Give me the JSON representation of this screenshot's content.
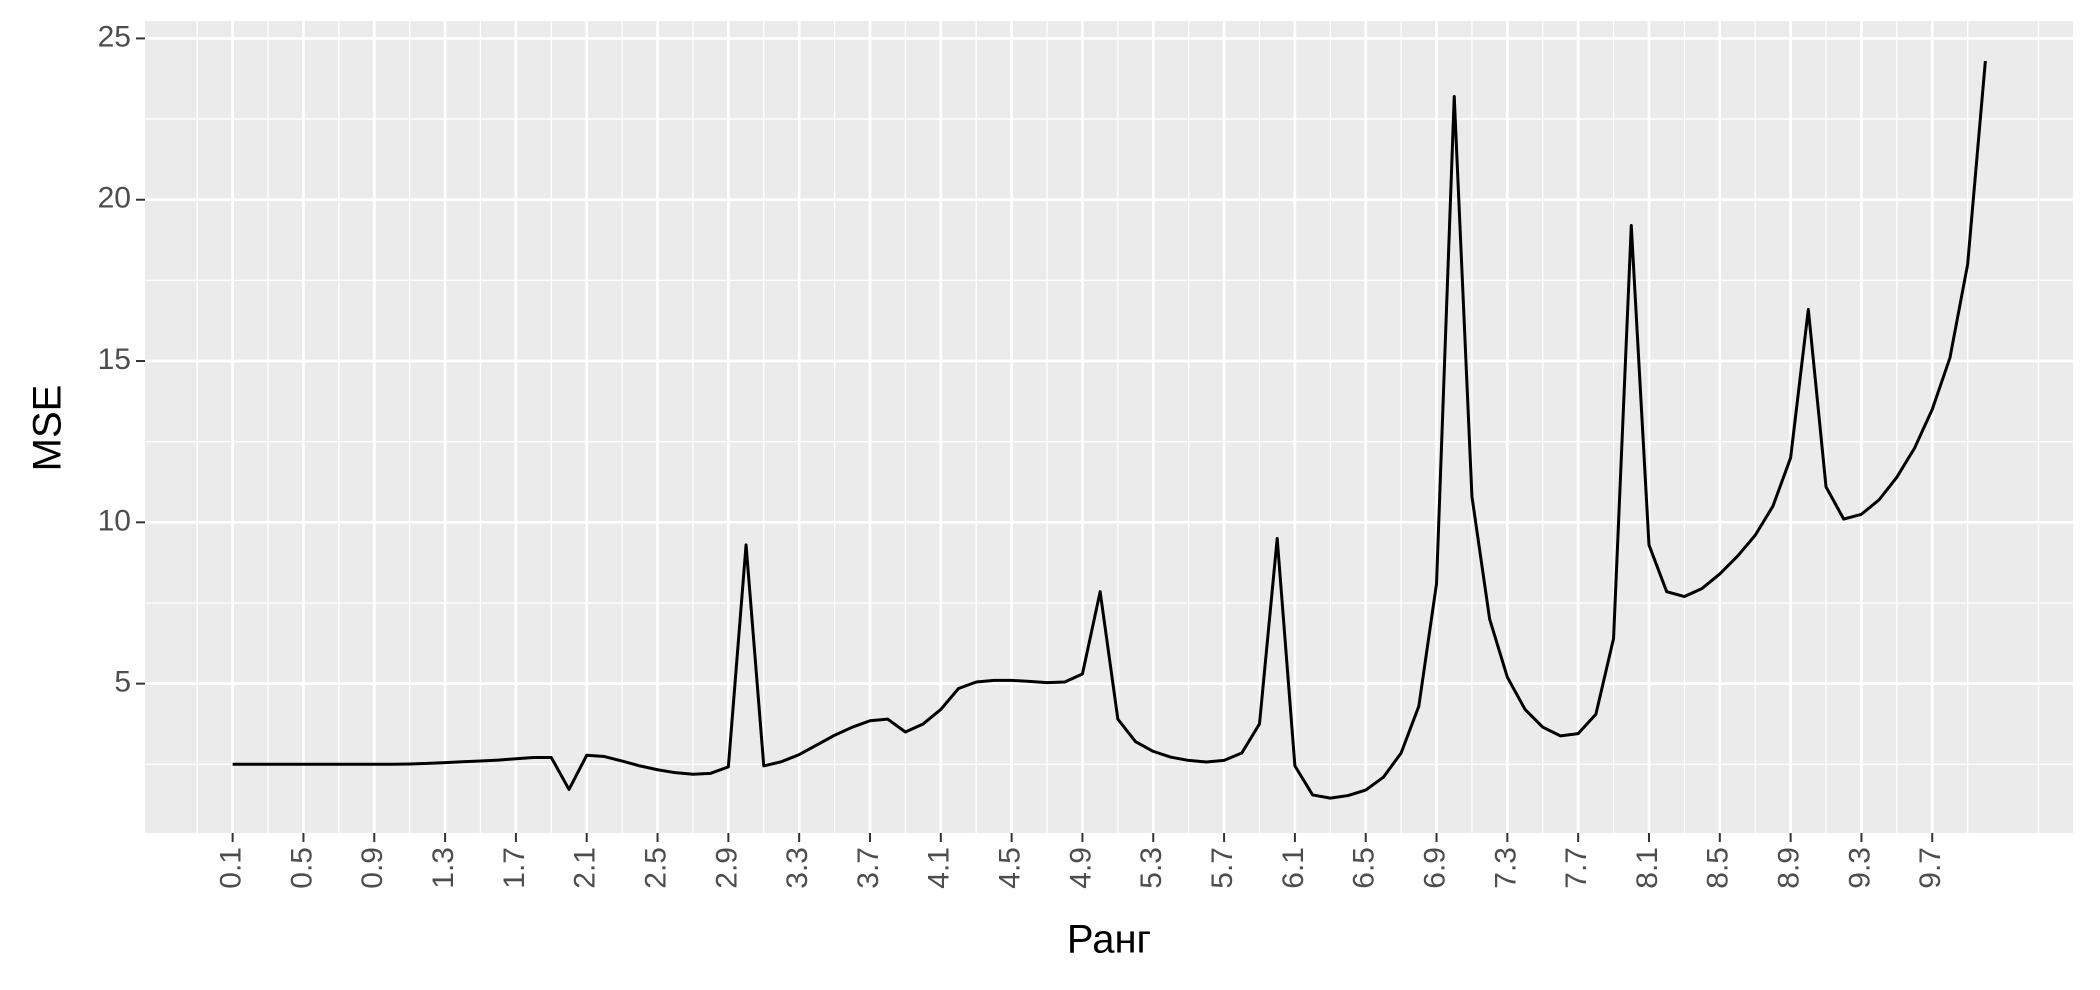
{
  "chart_data": {
    "type": "line",
    "x_label": "Ранг",
    "y_label": "MSE",
    "x": [
      0.1,
      0.2,
      0.3,
      0.4,
      0.5,
      0.6,
      0.7,
      0.8,
      0.9,
      1.0,
      1.1,
      1.2,
      1.3,
      1.4,
      1.5,
      1.6,
      1.7,
      1.8,
      1.9,
      2.0,
      2.1,
      2.2,
      2.3,
      2.4,
      2.5,
      2.6,
      2.7,
      2.8,
      2.9,
      3.0,
      3.1,
      3.2,
      3.3,
      3.4,
      3.5,
      3.6,
      3.7,
      3.8,
      3.9,
      4.0,
      4.1,
      4.2,
      4.3,
      4.4,
      4.5,
      4.6,
      4.7,
      4.8,
      4.9,
      5.0,
      5.1,
      5.2,
      5.3,
      5.4,
      5.5,
      5.6,
      5.7,
      5.8,
      5.9,
      6.0,
      6.1,
      6.2,
      6.3,
      6.4,
      6.5,
      6.6,
      6.7,
      6.8,
      6.9,
      7.0,
      7.1,
      7.2,
      7.3,
      7.4,
      7.5,
      7.6,
      7.7,
      7.8,
      7.9,
      8.0,
      8.1,
      8.2,
      8.3,
      8.4,
      8.5,
      8.6,
      8.7,
      8.8,
      8.9,
      9.0,
      9.1,
      9.2,
      9.3,
      9.4,
      9.5,
      9.6,
      9.7,
      9.8,
      9.9,
      10.0
    ],
    "values": [
      2.5,
      2.5,
      2.5,
      2.5,
      2.5,
      2.5,
      2.5,
      2.5,
      2.5,
      2.5,
      2.51,
      2.53,
      2.55,
      2.58,
      2.6,
      2.63,
      2.67,
      2.71,
      2.71,
      1.72,
      2.78,
      2.74,
      2.6,
      2.45,
      2.33,
      2.24,
      2.19,
      2.22,
      2.42,
      9.3,
      2.45,
      2.58,
      2.8,
      3.1,
      3.4,
      3.65,
      3.85,
      3.9,
      3.5,
      3.75,
      4.2,
      4.85,
      5.05,
      5.1,
      5.1,
      5.07,
      5.03,
      5.05,
      5.3,
      7.85,
      3.9,
      3.2,
      2.9,
      2.72,
      2.62,
      2.57,
      2.62,
      2.85,
      3.75,
      9.5,
      2.45,
      1.55,
      1.45,
      1.53,
      1.7,
      2.1,
      2.85,
      4.3,
      8.1,
      23.2,
      10.8,
      7.0,
      5.2,
      4.2,
      3.65,
      3.38,
      3.45,
      4.05,
      6.4,
      19.2,
      9.3,
      7.85,
      7.7,
      7.95,
      8.4,
      8.95,
      9.6,
      10.5,
      12.0,
      16.6,
      11.1,
      10.1,
      10.25,
      10.7,
      11.4,
      12.3,
      13.5,
      15.1,
      18.0,
      24.3
    ],
    "color": "#000000",
    "xlim": [
      -0.395,
      10.495
    ],
    "xticks": [
      0.1,
      0.5,
      0.9,
      1.3,
      1.7,
      2.1,
      2.5,
      2.9,
      3.3,
      3.7,
      4.1,
      4.5,
      4.9,
      5.3,
      5.7,
      6.1,
      6.5,
      6.9,
      7.3,
      7.7,
      8.1,
      8.5,
      8.9,
      9.3,
      9.7
    ],
    "ylim": [
      0.37,
      25.54
    ],
    "yticks": [
      5,
      10,
      15,
      20,
      25
    ],
    "grid": true
  }
}
